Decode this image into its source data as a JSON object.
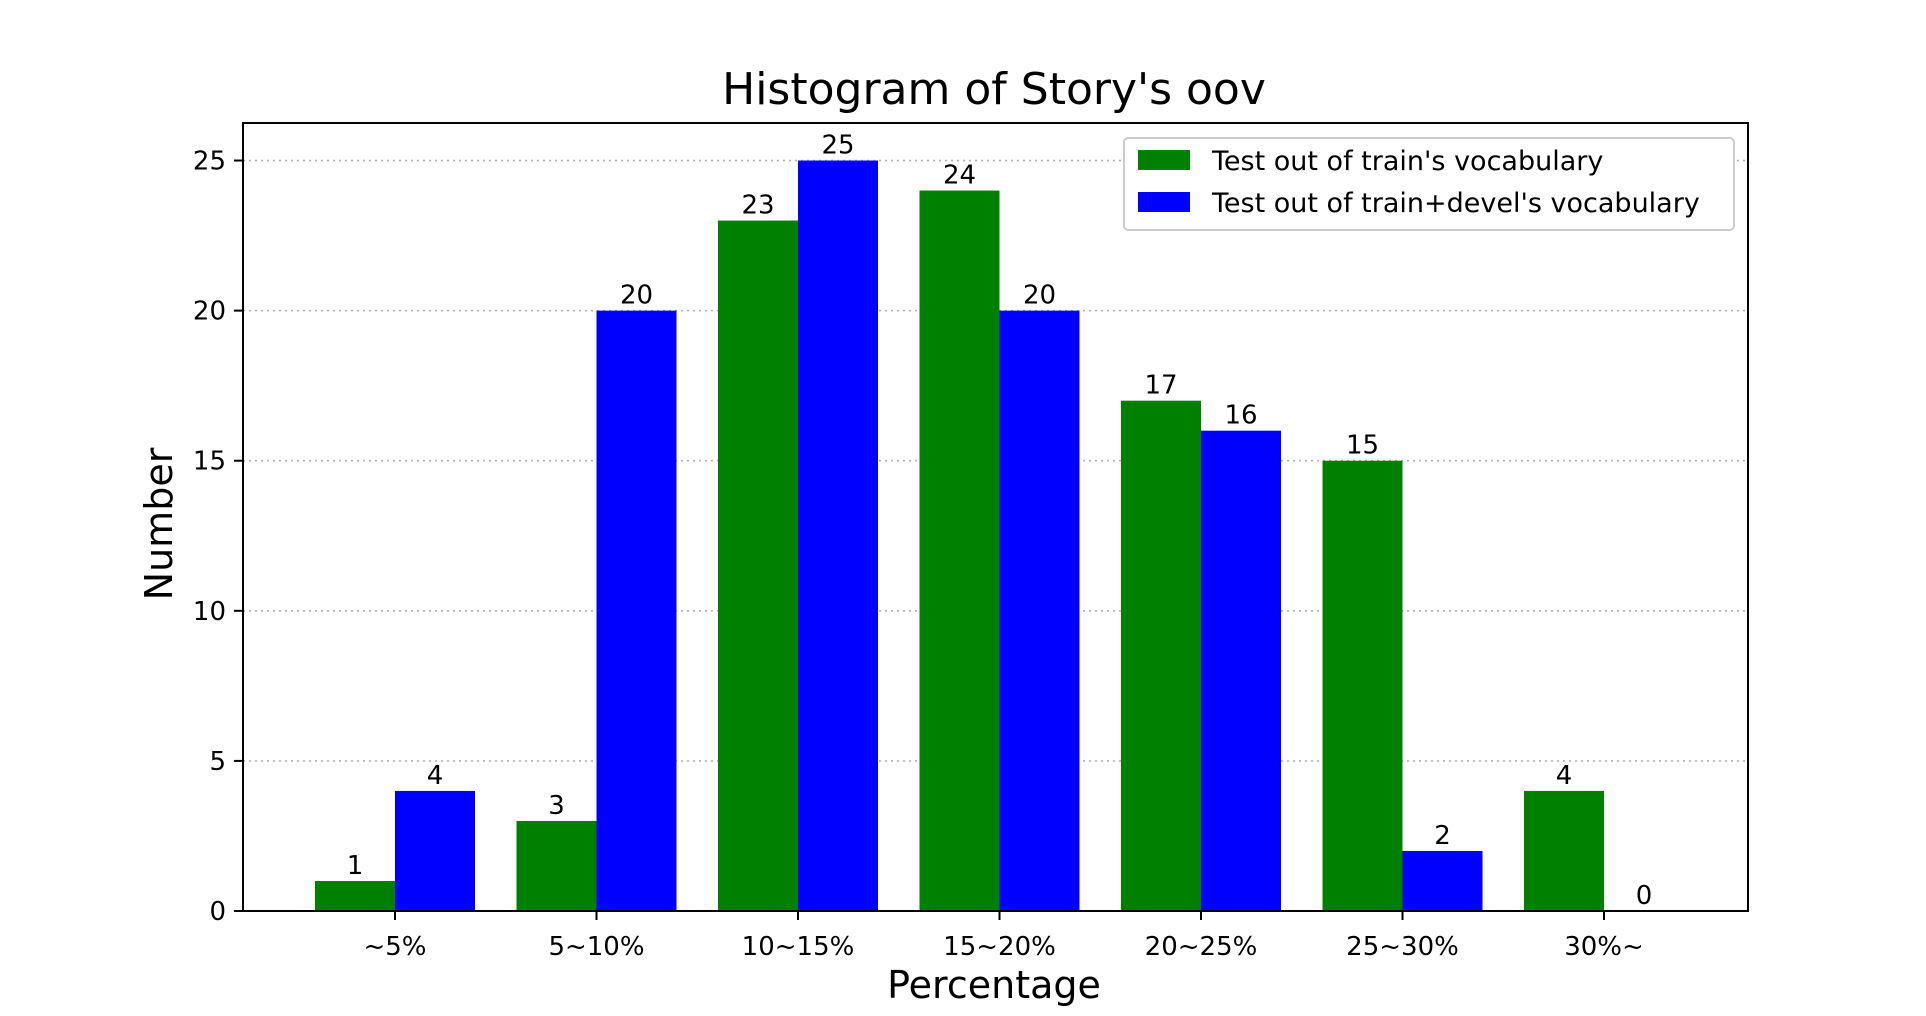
{
  "chart_data": {
    "type": "bar",
    "title": "Histogram of Story's oov",
    "xlabel": "Percentage",
    "ylabel": "Number",
    "categories": [
      "~5%",
      "5~10%",
      "10~15%",
      "15~20%",
      "20~25%",
      "25~30%",
      "30%~"
    ],
    "series": [
      {
        "name": "Test out of train's vocabulary",
        "color": "#008000",
        "values": [
          1,
          3,
          23,
          24,
          17,
          15,
          4
        ]
      },
      {
        "name": "Test out of train+devel's vocabulary",
        "color": "#0000ff",
        "values": [
          4,
          20,
          25,
          20,
          16,
          2,
          0
        ]
      }
    ],
    "ylim": [
      0,
      26.25
    ],
    "yticks": [
      0,
      5,
      10,
      15,
      20,
      25
    ],
    "grid": "horizontal dotted",
    "legend_position": "upper-right",
    "data_labels": true
  }
}
